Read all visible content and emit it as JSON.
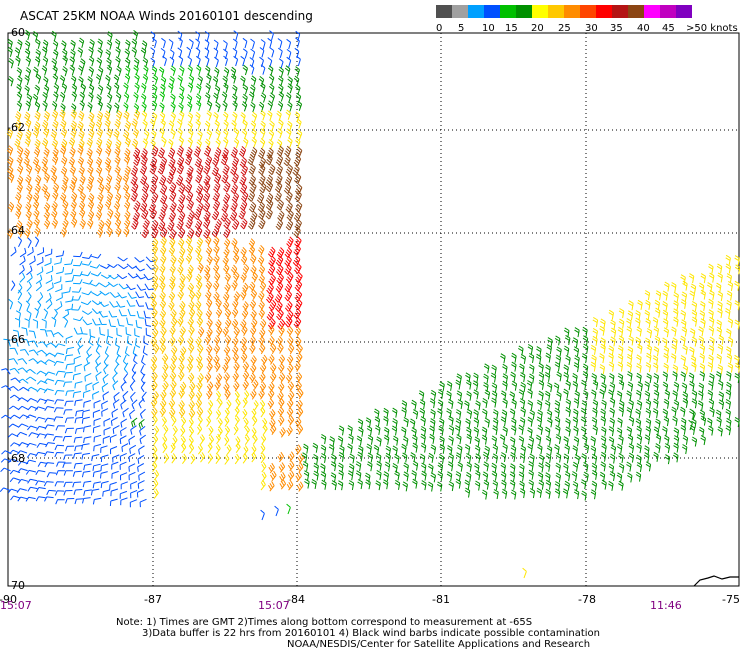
{
  "title": "ASCAT 25KM NOAA Winds 20160101 descending",
  "legend": {
    "colors": [
      "#505050",
      "#a0a0a0",
      "#00a0ff",
      "#0050ff",
      "#00c000",
      "#009000",
      "#ffff00",
      "#ffc800",
      "#ff8c00",
      "#ff4500",
      "#ff0000",
      "#b41414",
      "#8b4513",
      "#ff00ff",
      "#c000c0",
      "#8000c0"
    ],
    "labels": [
      "0",
      "5",
      "10",
      "15",
      "20",
      "25",
      "30",
      "35",
      "40",
      "45",
      ">50 knots"
    ]
  },
  "axes": {
    "x_ticks": [
      "-90",
      "-87",
      "-84",
      "-81",
      "-78",
      "-75"
    ],
    "y_ticks": [
      "-60",
      "-62",
      "-64",
      "-66",
      "-68",
      "-70"
    ]
  },
  "time_labels": [
    "15:07",
    "15:07",
    "11:46"
  ],
  "notes": [
    "Note: 1) Times are GMT 2)Times along bottom correspond to measurement at -65S",
    "3)Data buffer is 22 hrs from 20160101 4) Black wind barbs indicate possible contamination",
    "NOAA/NESDIS/Center for Satellite Applications and Research"
  ],
  "map_bounds": {
    "lon": [
      -90,
      -75
    ],
    "lat": [
      -70,
      -60
    ]
  }
}
